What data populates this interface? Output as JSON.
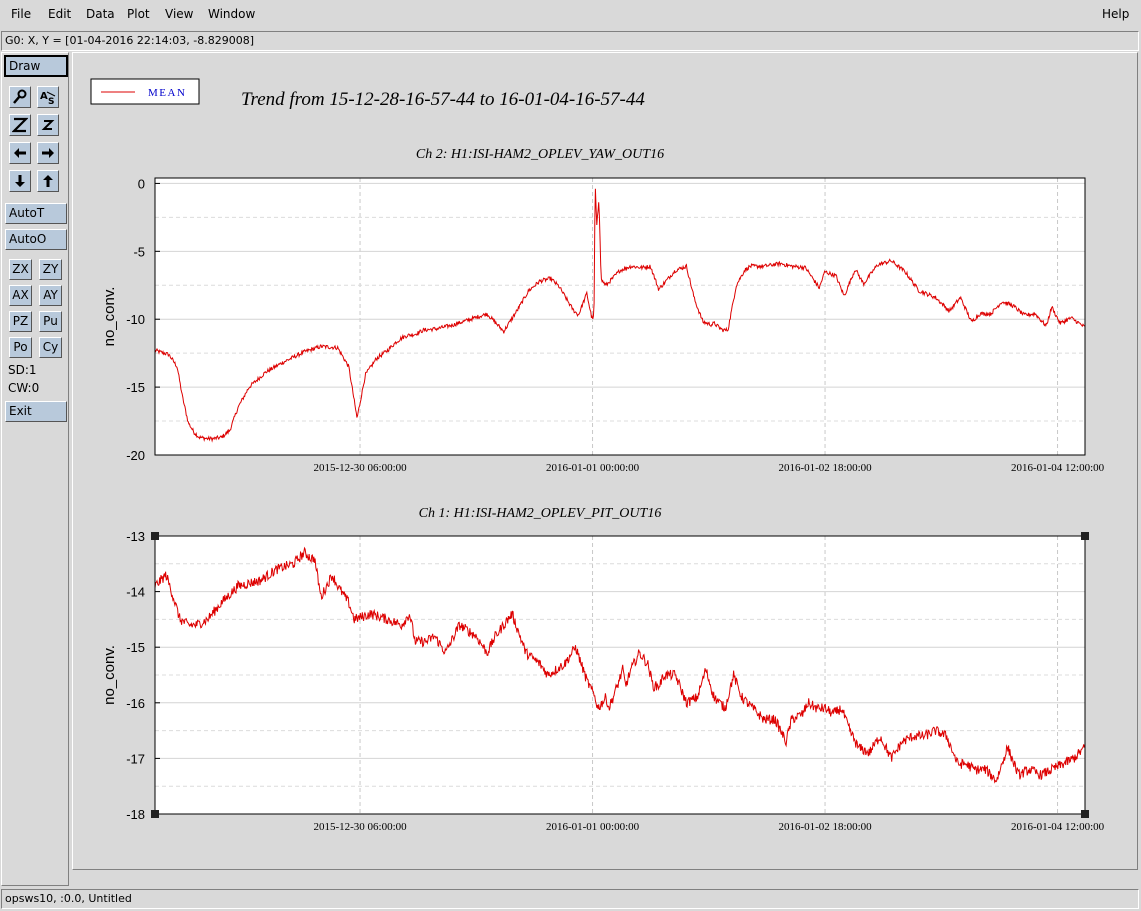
{
  "menu": {
    "file": "File",
    "edit": "Edit",
    "data": "Data",
    "plot": "Plot",
    "view": "View",
    "window": "Window",
    "help": "Help"
  },
  "status_top": "G0: X, Y = [01-04-2016 22:14:03, -8.829008]",
  "toolbar": {
    "draw": "Draw",
    "autot": "AutoT",
    "autoo": "AutoO",
    "zx": "ZX",
    "zy": "ZY",
    "ax": "AX",
    "ay": "AY",
    "pz": "PZ",
    "pu": "Pu",
    "po": "Po",
    "cy": "Cy",
    "sd": "SD:1",
    "cw": "CW:0",
    "exit": "Exit",
    "icons": [
      "zoom-icon",
      "label-icon",
      "zoom-in-z-icon",
      "zoom-out-z-icon",
      "arrow-left-icon",
      "arrow-right-icon",
      "arrow-down-icon",
      "arrow-up-icon"
    ]
  },
  "legend": {
    "label": "MEAN",
    "color": "#dd0000"
  },
  "page_title": "Trend from 15-12-28-16-57-44 to 16-01-04-16-57-44",
  "status_bottom": "opsws10, :0.0, Untitled",
  "colors": {
    "trace": "#dd0000",
    "plot_bg": "#ffffff",
    "button_bg": "#b8c9db",
    "window_bg": "#d9d9d9"
  },
  "chart_data": [
    {
      "type": "line",
      "title": "Ch 2: H1:ISI-HAM2_OPLEV_YAW_OUT16",
      "ylabel": "no_conv.",
      "xlabel": "",
      "x_ticks": [
        "2015-12-30 06:00:00",
        "2016-01-01 00:00:00",
        "2016-01-02 18:00:00",
        "2016-01-04 12:00:00"
      ],
      "x_tick_hours": [
        37.04,
        79.04,
        121.04,
        163.04
      ],
      "x_range_hours": [
        0,
        168
      ],
      "y_ticks": [
        "0",
        "-5",
        "-10",
        "-15",
        "-20"
      ],
      "y_tick_values": [
        0,
        -5,
        -10,
        -15,
        -20
      ],
      "ylim": [
        -20,
        0.4
      ],
      "grid": true,
      "noise": 0.15,
      "series": [
        {
          "x": [
            0,
            2.5,
            4,
            5,
            6,
            7,
            8,
            9.5,
            10.5,
            12,
            13.5,
            15,
            17,
            20,
            23,
            27,
            30,
            33,
            35,
            36.5,
            38,
            40,
            42,
            43.5,
            44.5,
            45.5,
            47,
            48.5,
            51,
            54,
            57,
            60,
            63,
            65.5,
            67.5,
            69.5,
            71.5,
            73,
            75.5,
            76.5,
            78,
            78.9,
            79.3,
            79.5,
            79.8,
            80.2,
            80.6,
            81.5,
            84,
            86,
            88,
            89.5,
            91,
            94,
            96,
            97.5,
            99,
            100.5,
            101,
            102.5,
            103.5,
            105,
            106.5,
            107.5,
            110,
            113,
            115,
            117.5,
            120,
            121,
            123,
            124.5,
            126.5,
            128,
            130.5,
            133,
            135.5,
            138,
            141,
            143.5,
            145.5,
            147.5,
            149,
            151,
            153,
            155,
            157,
            159,
            161,
            162,
            163.5,
            165.5,
            168
          ],
          "values": [
            -12.3,
            -12.6,
            -13.5,
            -15.8,
            -17.6,
            -18.3,
            -18.7,
            -18.8,
            -18.8,
            -18.7,
            -18.2,
            -16.5,
            -15,
            -13.9,
            -13.2,
            -12.4,
            -12,
            -12.1,
            -13.5,
            -17.3,
            -14.1,
            -12.9,
            -12.3,
            -11.7,
            -11.4,
            -11.2,
            -11.1,
            -10.8,
            -10.7,
            -10.4,
            -10.0,
            -9.6,
            -10.9,
            -9.3,
            -7.9,
            -7.2,
            -7.0,
            -7.6,
            -9.3,
            -9.7,
            -8.1,
            -9.9,
            -9.9,
            0.2,
            -3.2,
            -1.1,
            -7.1,
            -7.5,
            -6.4,
            -6.1,
            -6.2,
            -6.1,
            -7.8,
            -6.4,
            -6.1,
            -8.6,
            -10.2,
            -10.4,
            -10.3,
            -10.8,
            -10.8,
            -7.5,
            -6.4,
            -6.1,
            -6.1,
            -5.9,
            -6.1,
            -6.2,
            -7.7,
            -6.5,
            -6.8,
            -8.3,
            -6.3,
            -7.4,
            -6.0,
            -5.7,
            -6.5,
            -7.9,
            -8.4,
            -9.4,
            -8.4,
            -10.2,
            -9.6,
            -9.6,
            -8.7,
            -9.0,
            -9.7,
            -9.6,
            -10.5,
            -9.1,
            -10.3,
            -9.9,
            -10.6
          ]
        }
      ]
    },
    {
      "type": "line",
      "title": "Ch 1: H1:ISI-HAM2_OPLEV_PIT_OUT16",
      "ylabel": "no_conv.",
      "xlabel": "",
      "x_ticks": [
        "2015-12-30 06:00:00",
        "2016-01-01 00:00:00",
        "2016-01-02 18:00:00",
        "2016-01-04 12:00:00"
      ],
      "x_tick_hours": [
        37.04,
        79.04,
        121.04,
        163.04
      ],
      "x_range_hours": [
        0,
        168
      ],
      "y_ticks": [
        "-13",
        "-14",
        "-15",
        "-16",
        "-17",
        "-18"
      ],
      "y_tick_values": [
        -13,
        -14,
        -15,
        -16,
        -17,
        -18
      ],
      "ylim": [
        -18,
        -13
      ],
      "grid": true,
      "noise": 0.09,
      "series": [
        {
          "x": [
            0,
            1,
            2,
            3,
            4.5,
            6,
            7.5,
            9.5,
            12,
            15,
            19,
            22,
            25,
            27,
            28.2,
            28.8,
            30,
            31,
            32,
            33,
            35,
            36,
            39,
            42,
            44.5,
            46,
            47,
            49,
            50.5,
            52.5,
            55,
            58,
            60,
            61.5,
            63,
            64.5,
            67,
            69.5,
            71,
            72.5,
            74,
            76,
            78,
            79.5,
            80,
            81.5,
            82,
            83.5,
            84.5,
            85,
            86,
            87.5,
            89,
            90,
            91,
            92,
            94,
            96,
            98,
            99.5,
            101,
            103,
            104.5,
            106,
            108,
            110,
            112,
            114,
            115,
            117,
            118,
            119.5,
            121,
            122.5,
            124,
            125.5,
            127,
            129,
            131,
            133,
            135,
            137,
            139,
            141,
            143,
            145,
            146.5,
            148,
            150,
            152,
            154,
            156,
            158,
            160,
            162,
            164,
            166,
            168
          ],
          "values": [
            -13.9,
            -13.8,
            -13.7,
            -14.0,
            -14.5,
            -14.6,
            -14.6,
            -14.5,
            -14.2,
            -13.9,
            -13.8,
            -13.6,
            -13.5,
            -13.3,
            -13.4,
            -13.4,
            -14.1,
            -13.9,
            -13.7,
            -13.9,
            -14.2,
            -14.5,
            -14.4,
            -14.5,
            -14.6,
            -14.4,
            -14.9,
            -14.9,
            -14.8,
            -15.1,
            -14.6,
            -14.8,
            -15.1,
            -14.8,
            -14.6,
            -14.4,
            -15.1,
            -15.3,
            -15.5,
            -15.4,
            -15.3,
            -15.0,
            -15.6,
            -15.9,
            -16.1,
            -15.9,
            -16.1,
            -15.7,
            -15.4,
            -15.7,
            -15.4,
            -15.1,
            -15.3,
            -15.7,
            -15.7,
            -15.5,
            -15.5,
            -16.0,
            -15.9,
            -15.4,
            -15.9,
            -16.1,
            -15.5,
            -15.9,
            -16.1,
            -16.3,
            -16.3,
            -16.7,
            -16.3,
            -16.2,
            -16.0,
            -16.1,
            -16.1,
            -16.2,
            -16.1,
            -16.5,
            -16.8,
            -16.9,
            -16.6,
            -17.0,
            -16.7,
            -16.6,
            -16.6,
            -16.5,
            -16.6,
            -17.1,
            -17.1,
            -17.2,
            -17.2,
            -17.4,
            -16.8,
            -17.3,
            -17.2,
            -17.3,
            -17.2,
            -17.1,
            -17.0,
            -16.8
          ]
        }
      ]
    }
  ]
}
